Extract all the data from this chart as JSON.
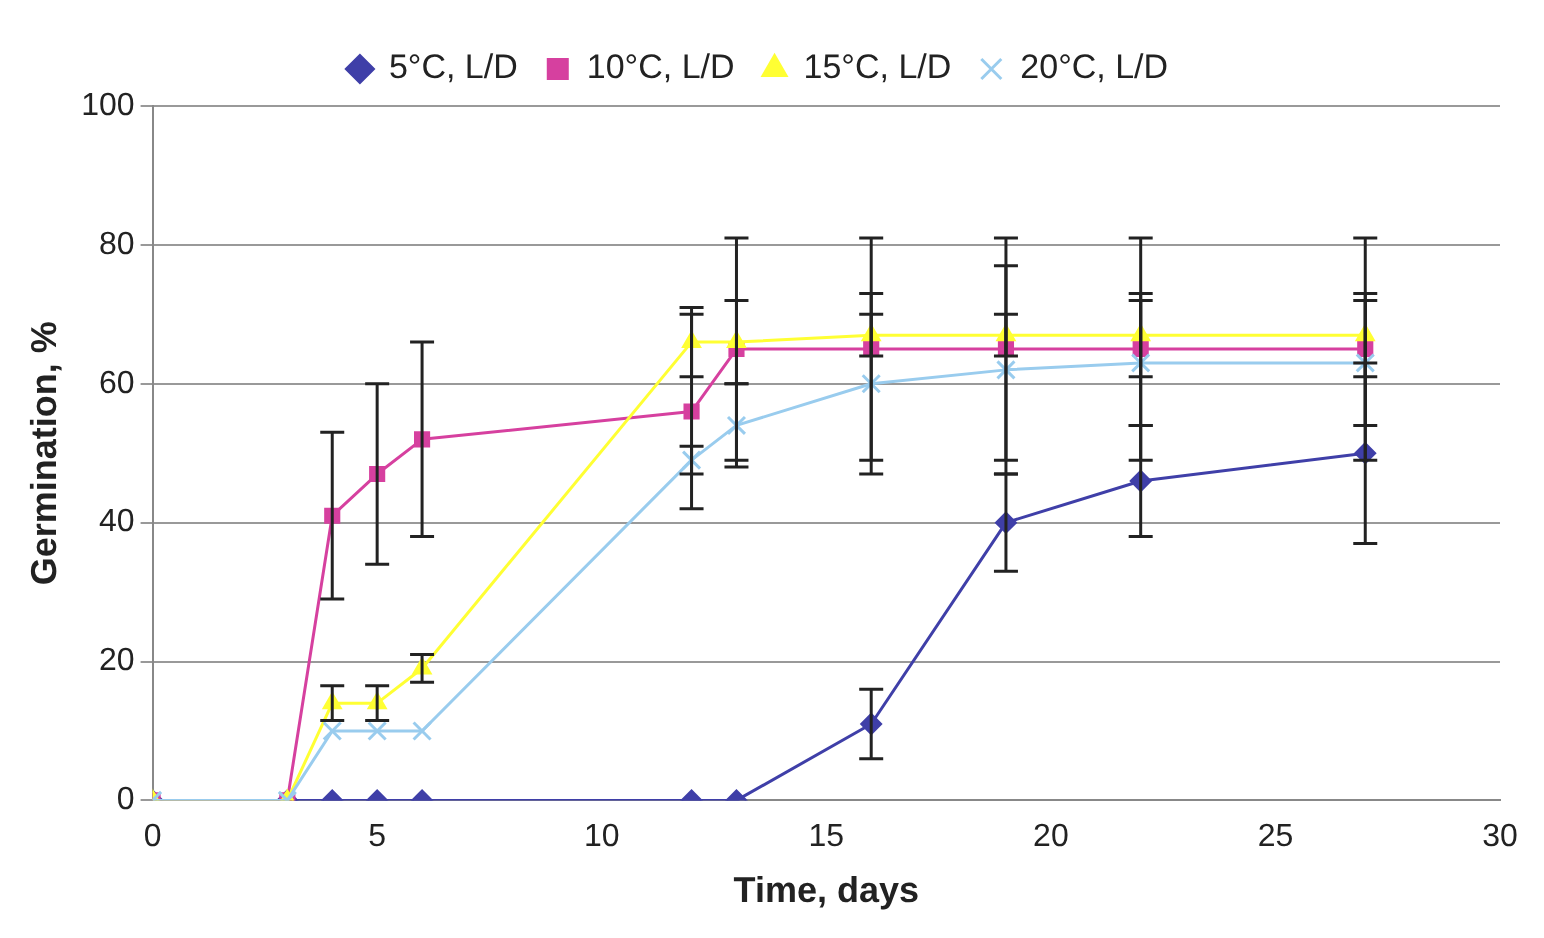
{
  "chart_data": {
    "type": "line",
    "xlabel": "Time, days",
    "ylabel": "Germination, %",
    "x": [
      0,
      3,
      4,
      5,
      6,
      12,
      13,
      16,
      19,
      22,
      27
    ],
    "xlim": [
      0,
      30
    ],
    "xticks": [
      0,
      5,
      10,
      15,
      20,
      25,
      30
    ],
    "ylim": [
      0,
      100
    ],
    "yticks": [
      0,
      20,
      40,
      60,
      80,
      100
    ],
    "grid": "y",
    "legend": "top",
    "line_style": "solid",
    "series": [
      {
        "name": "5°C, L/D",
        "color": "#3f3fa8",
        "marker": "diamond",
        "values": [
          0,
          0,
          0,
          0,
          0,
          0,
          0,
          11,
          40,
          46,
          50
        ],
        "errors": [
          null,
          null,
          null,
          null,
          null,
          null,
          null,
          5,
          7,
          8,
          13
        ]
      },
      {
        "name": "10°C, L/D",
        "color": "#d6409f",
        "marker": "square",
        "values": [
          0,
          0,
          41,
          47,
          52,
          56,
          65,
          65,
          65,
          65,
          65
        ],
        "errors": [
          null,
          null,
          12,
          13,
          14,
          14,
          16,
          16,
          16,
          16,
          16
        ]
      },
      {
        "name": "15°C, L/D",
        "color": "#ffff33",
        "marker": "triangle",
        "values": [
          0,
          0,
          14,
          14,
          19,
          66,
          66,
          67,
          67,
          67,
          67
        ],
        "errors": [
          null,
          null,
          2.5,
          2.5,
          2,
          5,
          6,
          3,
          3,
          6,
          6
        ]
      },
      {
        "name": "20°C, L/D",
        "color": "#99ccee",
        "marker": "cross",
        "values": [
          0,
          0,
          10,
          10,
          10,
          49,
          54,
          60,
          62,
          63,
          63
        ],
        "errors": [
          null,
          null,
          null,
          null,
          null,
          2,
          6,
          13,
          15,
          9,
          9
        ]
      }
    ]
  }
}
